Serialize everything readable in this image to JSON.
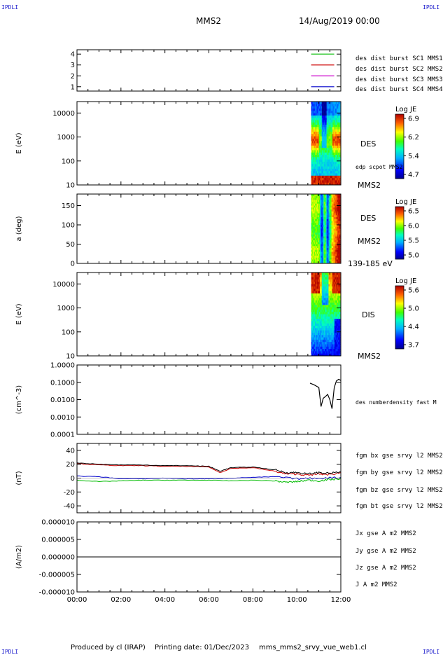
{
  "header": {
    "corner_left": "IPDLI",
    "corner_right": "IPDLI",
    "spacecraft": "MMS2",
    "datetime": "14/Aug/2019 00:00"
  },
  "footer": {
    "corner_left": "IPDLI",
    "corner_right": "IPDLI",
    "produced_by": "Produced by cl (IRAP)",
    "printing_date": "Printing date: 01/Dec/2023",
    "product": "mms_mms2_srvy_vue_web1.cl"
  },
  "colors": {
    "mms1": "#0000cc",
    "mms2": "#cc00cc",
    "mms3": "#cc0000",
    "mms4": "#00bb00",
    "bx": "#cc0000",
    "by": "#00bb00",
    "bz": "#0000cc",
    "bt": "#000000"
  },
  "chart_data": [
    {
      "type": "line",
      "panel": "burst",
      "x_ticks": [
        "00:00",
        "02:00",
        "04:00",
        "06:00",
        "08:00",
        "10:00",
        "12:00"
      ],
      "y_ticks": [
        "1",
        "2",
        "3",
        "4"
      ],
      "ylim": [
        0.6,
        4.4
      ],
      "series": [
        {
          "name": "des dist burst SC1 MMS1",
          "color": "#0000cc",
          "y": 1
        },
        {
          "name": "des dist burst SC2 MMS2",
          "color": "#cc00cc",
          "y": 2
        },
        {
          "name": "des dist burst SC3 MMS3",
          "color": "#cc0000",
          "y": 3
        },
        {
          "name": "des dist burst SC4 MMS4",
          "color": "#00bb00",
          "y": 4
        }
      ]
    },
    {
      "type": "heatmap",
      "panel": "des_energy",
      "ylabel": "E (eV)",
      "yscale": "log",
      "ylim": [
        10,
        30000
      ],
      "y_ticks": [
        "10",
        "100",
        "1000",
        "10000"
      ],
      "labels": [
        "DES",
        "edp scpot MMS2",
        "MMS2"
      ],
      "colorbar": {
        "title": "Log JE",
        "ticks": [
          "6.9",
          "6.2",
          "5.4",
          "4.7"
        ]
      }
    },
    {
      "type": "heatmap",
      "panel": "des_pitch",
      "ylabel": "a (deg)",
      "ylim": [
        0,
        180
      ],
      "y_ticks": [
        "0",
        "50",
        "100",
        "150"
      ],
      "labels": [
        "DES",
        "MMS2",
        "139-185 eV"
      ],
      "colorbar": {
        "title": "Log JE",
        "ticks": [
          "6.5",
          "6.0",
          "5.5",
          "5.0"
        ]
      }
    },
    {
      "type": "heatmap",
      "panel": "dis_energy",
      "ylabel": "E (eV)",
      "yscale": "log",
      "ylim": [
        10,
        30000
      ],
      "y_ticks": [
        "10",
        "100",
        "1000",
        "10000"
      ],
      "labels": [
        "DIS",
        "MMS2"
      ],
      "colorbar": {
        "title": "Log JE",
        "ticks": [
          "5.6",
          "5.0",
          "4.4",
          "3.7"
        ]
      }
    },
    {
      "type": "line",
      "panel": "density",
      "ylabel": "(cm^-3)",
      "yscale": "log",
      "ylim": [
        0.0001,
        1
      ],
      "y_ticks": [
        "1.0000",
        "0.1000",
        "0.0100",
        "0.0010",
        "0.0001"
      ],
      "series": [
        {
          "name": "des numberdensity fast M",
          "color": "#000000",
          "x_hours": [
            10.6,
            10.8,
            11.0,
            11.1,
            11.2,
            11.3,
            11.4,
            11.5,
            11.6,
            11.7,
            11.8,
            11.9,
            12.0
          ],
          "y": [
            0.09,
            0.07,
            0.05,
            0.004,
            0.012,
            0.015,
            0.02,
            0.01,
            0.003,
            0.05,
            0.12,
            0.15,
            0.13
          ]
        }
      ]
    },
    {
      "type": "line",
      "panel": "fgm",
      "ylabel": "(nT)",
      "ylim": [
        -50,
        50
      ],
      "y_ticks": [
        "40",
        "20",
        "0",
        "-20",
        "-40"
      ],
      "series": [
        {
          "name": "fgm bx gse srvy l2 MMS2",
          "color": "#cc0000",
          "x_hours": [
            0,
            1,
            2,
            3,
            4,
            5,
            6,
            6.5,
            7,
            8,
            9,
            9.5,
            10,
            10.5,
            11,
            11.5,
            12
          ],
          "y": [
            21,
            19,
            18,
            18,
            17,
            17,
            16,
            8,
            14,
            15,
            10,
            6,
            6,
            4,
            6,
            5,
            8
          ]
        },
        {
          "name": "fgm by gse srvy l2 MMS2",
          "color": "#00bb00",
          "x_hours": [
            0,
            1,
            2,
            3,
            4,
            5,
            6,
            7,
            8,
            9,
            9.5,
            10,
            10.5,
            11,
            11.5,
            12
          ],
          "y": [
            -3,
            -5,
            -4,
            -3,
            -3,
            -3,
            -3,
            -4,
            -3,
            -4,
            -6,
            -5,
            -3,
            -4,
            -2,
            -1
          ]
        },
        {
          "name": "fgm bz gse srvy l2 MMS2",
          "color": "#0000cc",
          "x_hours": [
            0,
            1,
            2,
            3,
            4,
            5,
            6,
            7,
            8,
            9,
            10,
            11,
            12
          ],
          "y": [
            3,
            2,
            -1,
            -1,
            0,
            -1,
            -1,
            0,
            1,
            2,
            -1,
            0,
            1
          ]
        },
        {
          "name": "fgm bt gse srvy l2 MMS2",
          "color": "#000000",
          "x_hours": [
            0,
            1,
            2,
            3,
            4,
            5,
            6,
            6.5,
            7,
            8,
            9,
            9.5,
            10,
            10.5,
            11,
            11.5,
            12
          ],
          "y": [
            22,
            20,
            19,
            19,
            18,
            18,
            17,
            10,
            15,
            16,
            12,
            8,
            8,
            6,
            8,
            7,
            9
          ]
        }
      ]
    },
    {
      "type": "line",
      "panel": "current",
      "ylabel": "(A/m2)",
      "ylim": [
        -1e-05,
        1e-05
      ],
      "y_ticks": [
        "0.000010",
        "0.000005",
        "0.000000",
        "-0.000005",
        "-0.000010"
      ],
      "series": [
        {
          "name": "Jx gse A m2 MMS2",
          "color": "#cc0000"
        },
        {
          "name": "Jy gse A m2 MMS2",
          "color": "#00bb00"
        },
        {
          "name": "Jz gse A m2 MMS2",
          "color": "#0000cc"
        },
        {
          "name": "J A m2 MMS2",
          "color": "#000000"
        }
      ]
    }
  ]
}
